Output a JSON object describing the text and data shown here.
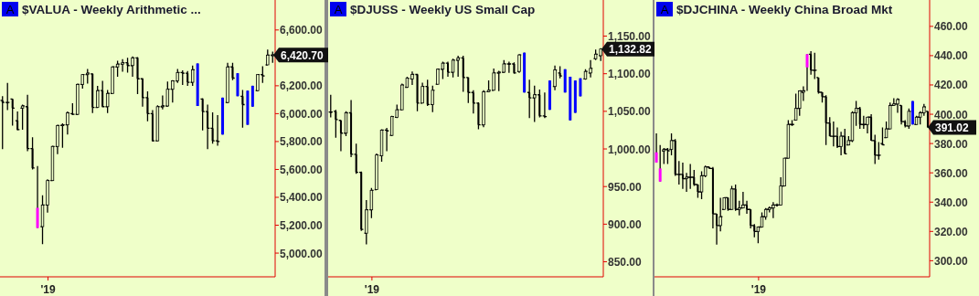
{
  "chart_data": [
    {
      "type": "candlestick",
      "title": "$VALUA - Weekly  Arithmetic ...",
      "annotations": [
        "A",
        "6,420.70"
      ],
      "categories": [
        null,
        null,
        null,
        null,
        null,
        null,
        null,
        null,
        null,
        "'19",
        null,
        null,
        null,
        null,
        null,
        null,
        null,
        null,
        null,
        null,
        null,
        null,
        null,
        null,
        null,
        null,
        null,
        null,
        null,
        null,
        null,
        null,
        null,
        null,
        null,
        null,
        null,
        null,
        null,
        null,
        null,
        null,
        null,
        null,
        null,
        null,
        null,
        null,
        null,
        null,
        null,
        null,
        null,
        null,
        null
      ],
      "ohlc": [
        [
          6095,
          6125,
          5745,
          6080
        ],
        [
          6080,
          6220,
          6025,
          6080
        ],
        [
          6105,
          6105,
          5915,
          6040
        ],
        [
          5950,
          6015,
          5880,
          5885
        ],
        [
          6040,
          6065,
          5885,
          6055
        ],
        [
          6050,
          6135,
          5730,
          5750
        ],
        [
          5750,
          5830,
          5600,
          5610
        ],
        [
          5325,
          5625,
          5180,
          5180
        ],
        [
          5190,
          5415,
          5065,
          5345
        ],
        [
          5345,
          5530,
          5290,
          5520
        ],
        [
          5520,
          5770,
          5520,
          5765
        ],
        [
          5765,
          5920,
          5710,
          5915
        ],
        [
          5915,
          5930,
          5755,
          5920
        ],
        [
          5920,
          6015,
          5850,
          6005
        ],
        [
          6000,
          6075,
          5990,
          5995
        ],
        [
          5995,
          6215,
          5990,
          6210
        ],
        [
          6210,
          6285,
          6180,
          6280
        ],
        [
          6280,
          6320,
          6215,
          6290
        ],
        [
          6285,
          6290,
          6005,
          6045
        ],
        [
          6045,
          6200,
          6040,
          6165
        ],
        [
          6165,
          6235,
          6045,
          6050
        ],
        [
          6050,
          6170,
          6005,
          6145
        ],
        [
          6145,
          6340,
          6145,
          6335
        ],
        [
          6335,
          6380,
          6265,
          6355
        ],
        [
          6355,
          6390,
          6300,
          6365
        ],
        [
          6365,
          6400,
          6295,
          6345
        ],
        [
          6345,
          6410,
          6265,
          6400
        ],
        [
          6400,
          6405,
          6140,
          6250
        ],
        [
          6250,
          6255,
          6050,
          6115
        ],
        [
          6115,
          6160,
          5945,
          6000
        ],
        [
          6000,
          6025,
          5800,
          5805
        ],
        [
          5805,
          6060,
          5805,
          6050
        ],
        [
          6050,
          6130,
          6030,
          6055
        ],
        [
          6055,
          6230,
          6050,
          6175
        ],
        [
          6175,
          6240,
          6080,
          6235
        ],
        [
          6235,
          6320,
          6220,
          6295
        ],
        [
          6295,
          6310,
          6205,
          6290
        ],
        [
          6290,
          6305,
          6200,
          6225
        ],
        [
          6225,
          6345,
          6200,
          6315
        ],
        [
          6360,
          6360,
          6055,
          6055
        ],
        [
          6105,
          6110,
          5880,
          6015
        ],
        [
          6015,
          6065,
          5745,
          5895
        ],
        [
          5895,
          6010,
          5785,
          5805
        ],
        [
          5805,
          5990,
          5770,
          5800
        ],
        [
          5850,
          6115,
          5850,
          6115
        ],
        [
          6080,
          6365,
          6075,
          6335
        ],
        [
          6335,
          6365,
          6240,
          6255
        ],
        [
          6290,
          6290,
          6125,
          6125
        ],
        [
          6125,
          6170,
          5900,
          6065
        ],
        [
          6165,
          6165,
          5920,
          5920
        ],
        [
          6050,
          6200,
          6050,
          6200
        ],
        [
          6165,
          6280,
          6160,
          6280
        ],
        [
          6280,
          6340,
          6220,
          6270
        ],
        [
          6350,
          6460,
          6350,
          6420
        ],
        [
          6420,
          6445,
          6365,
          6420.7
        ]
      ],
      "colors": [
        "#000000",
        "#000000",
        "#000000",
        "#000000",
        "#000000",
        "#000000",
        "#000000",
        "#ff00ff",
        "#000000",
        "#000000",
        "#000000",
        "#000000",
        "#000000",
        "#000000",
        "#000000",
        "#000000",
        "#000000",
        "#000000",
        "#000000",
        "#000000",
        "#000000",
        "#000000",
        "#000000",
        "#000000",
        "#000000",
        "#000000",
        "#000000",
        "#000000",
        "#000000",
        "#000000",
        "#000000",
        "#000000",
        "#000000",
        "#000000",
        "#000000",
        "#000000",
        "#000000",
        "#000000",
        "#000000",
        "#0000ff",
        "#000000",
        "#000000",
        "#000000",
        "#000000",
        "#0000ff",
        "#000000",
        "#000000",
        "#0000ff",
        "#000000",
        "#0000ff",
        "#0000ff",
        "#000000",
        "#000000",
        "#000000",
        "#000000"
      ],
      "ylim": [
        4830,
        6815
      ],
      "yticks": [
        {
          "value": 5000,
          "label": "5,000.00"
        },
        {
          "value": 5200,
          "label": "5,200.00"
        },
        {
          "value": 5400,
          "label": "5,400.00"
        },
        {
          "value": 5600,
          "label": "5,600.00"
        },
        {
          "value": 5800,
          "label": "5,800.00"
        },
        {
          "value": 6000,
          "label": "6,000.00"
        },
        {
          "value": 6200,
          "label": "6,200.00"
        },
        {
          "value": 6600,
          "label": "6,600.00"
        }
      ]
    },
    {
      "type": "candlestick",
      "title": "$DJUSS - Weekly  US Small Cap",
      "annotations": [
        "A",
        "1,132.82"
      ],
      "categories": [
        null,
        null,
        null,
        null,
        null,
        null,
        null,
        null,
        "'19",
        null,
        null,
        null,
        null,
        null,
        null,
        null,
        null,
        null,
        null,
        null,
        null,
        null,
        null,
        null,
        null,
        null,
        null,
        null,
        null,
        null,
        null,
        null,
        null,
        null,
        null,
        null,
        null,
        null,
        null,
        null,
        null,
        null,
        null,
        null,
        null,
        null,
        null,
        null,
        null,
        null,
        null,
        null,
        null,
        null
      ],
      "ohlc": [
        [
          1049,
          1072,
          1042,
          1049
        ],
        [
          1050,
          1052,
          1015,
          1039
        ],
        [
          1038,
          1038,
          997,
          1021
        ],
        [
          1021,
          1050,
          1017,
          1048
        ],
        [
          1048,
          1065,
          989,
          993
        ],
        [
          993,
          1007,
          967,
          969
        ],
        [
          969,
          970,
          891,
          893
        ],
        [
          888,
          932,
          873,
          919
        ],
        [
          919,
          948,
          908,
          945
        ],
        [
          946,
          994,
          946,
          992
        ],
        [
          991,
          1026,
          983,
          1025
        ],
        [
          1025,
          1028,
          997,
          1024
        ],
        [
          1018,
          1044,
          1017,
          1043
        ],
        [
          1042,
          1059,
          1041,
          1052
        ],
        [
          1052,
          1087,
          1052,
          1085
        ],
        [
          1082,
          1096,
          1081,
          1094
        ],
        [
          1093,
          1103,
          1085,
          1099
        ],
        [
          1099,
          1100,
          1050,
          1061
        ],
        [
          1061,
          1088,
          1061,
          1083
        ],
        [
          1083,
          1092,
          1057,
          1059
        ],
        [
          1059,
          1084,
          1049,
          1078
        ],
        [
          1086,
          1107,
          1086,
          1106
        ],
        [
          1106,
          1116,
          1093,
          1114
        ],
        [
          1114,
          1116,
          1096,
          1102
        ],
        [
          1102,
          1120,
          1095,
          1118
        ],
        [
          1118,
          1124,
          1096,
          1121
        ],
        [
          1121,
          1124,
          1076,
          1095
        ],
        [
          1095,
          1095,
          1061,
          1075
        ],
        [
          1075,
          1078,
          1047,
          1061
        ],
        [
          1061,
          1062,
          1026,
          1032
        ],
        [
          1032,
          1078,
          1029,
          1076
        ],
        [
          1076,
          1091,
          1076,
          1078
        ],
        [
          1078,
          1107,
          1078,
          1101
        ],
        [
          1101,
          1104,
          1077,
          1102
        ],
        [
          1102,
          1118,
          1101,
          1113
        ],
        [
          1113,
          1116,
          1101,
          1113
        ],
        [
          1113,
          1115,
          1100,
          1101
        ],
        [
          1103,
          1126,
          1101,
          1125
        ],
        [
          1128,
          1128,
          1075,
          1075
        ],
        [
          1075,
          1092,
          1041,
          1068
        ],
        [
          1068,
          1084,
          1036,
          1072
        ],
        [
          1072,
          1079,
          1042,
          1044
        ],
        [
          1044,
          1075,
          1041,
          1043
        ],
        [
          1052,
          1091,
          1052,
          1091
        ],
        [
          1083,
          1111,
          1078,
          1105
        ],
        [
          1101,
          1110,
          1094,
          1097
        ],
        [
          1106,
          1106,
          1075,
          1075
        ],
        [
          1096,
          1096,
          1038,
          1038
        ],
        [
          1091,
          1091,
          1048,
          1048
        ],
        [
          1070,
          1094,
          1070,
          1094
        ],
        [
          1093,
          1106,
          1092,
          1103
        ],
        [
          1101,
          1118,
          1095,
          1107
        ],
        [
          1120,
          1132,
          1118,
          1126
        ],
        [
          1124,
          1134,
          1117,
          1132.82
        ]
      ],
      "colors": [
        "#000000",
        "#000000",
        "#000000",
        "#000000",
        "#000000",
        "#000000",
        "#000000",
        "#000000",
        "#000000",
        "#000000",
        "#000000",
        "#000000",
        "#000000",
        "#000000",
        "#000000",
        "#000000",
        "#000000",
        "#000000",
        "#000000",
        "#000000",
        "#000000",
        "#000000",
        "#000000",
        "#000000",
        "#000000",
        "#000000",
        "#000000",
        "#000000",
        "#000000",
        "#000000",
        "#000000",
        "#000000",
        "#000000",
        "#000000",
        "#000000",
        "#000000",
        "#000000",
        "#000000",
        "#0000ff",
        "#000000",
        "#000000",
        "#000000",
        "#000000",
        "#0000ff",
        "#000000",
        "#000000",
        "#0000ff",
        "#0000ff",
        "#0000ff",
        "#0000ff",
        "#000000",
        "#000000",
        "#000000",
        "#000000"
      ],
      "ylim": [
        830,
        1198
      ],
      "yticks": [
        {
          "value": 850,
          "label": "850.00"
        },
        {
          "value": 900,
          "label": "900.00"
        },
        {
          "value": 950,
          "label": "950.00"
        },
        {
          "value": 1000,
          "label": "1,000.00"
        },
        {
          "value": 1050,
          "label": "1,050.00"
        },
        {
          "value": 1100,
          "label": "1,100.00"
        },
        {
          "value": 1150,
          "label": "1,150.00"
        }
      ]
    },
    {
      "type": "candlestick",
      "title": "$DJCHINA - Weekly  China Broad Mkt",
      "annotations": [
        "A",
        "391.02"
      ],
      "categories": [
        null,
        null,
        null,
        null,
        null,
        null,
        null,
        null,
        null,
        null,
        null,
        null,
        null,
        null,
        null,
        null,
        null,
        null,
        null,
        null,
        null,
        null,
        null,
        null,
        null,
        null,
        null,
        "'19",
        null,
        null,
        null,
        null,
        null,
        null,
        null,
        null,
        null,
        null,
        null,
        null,
        null,
        null,
        null,
        null,
        null,
        null,
        null,
        null,
        null,
        null,
        null,
        null,
        null,
        null,
        null,
        null,
        null,
        null,
        null,
        null,
        null,
        null,
        null,
        null,
        null,
        null,
        null,
        null,
        null,
        null,
        null,
        null,
        null
      ],
      "ohlc": [
        [
          374,
          387,
          367,
          367
        ],
        [
          363,
          379,
          354,
          354
        ],
        [
          375,
          377,
          366,
          376
        ],
        [
          376,
          377,
          366,
          375
        ],
        [
          376,
          387,
          372,
          382
        ],
        [
          382,
          383,
          358,
          359
        ],
        [
          359,
          368,
          352,
          359
        ],
        [
          359,
          367,
          349,
          356
        ],
        [
          356,
          360,
          347,
          357
        ],
        [
          357,
          366,
          349,
          357
        ],
        [
          357,
          362,
          351,
          352
        ],
        [
          352,
          352,
          343,
          347
        ],
        [
          347,
          361,
          342,
          358
        ],
        [
          358,
          365,
          357,
          364
        ],
        [
          364,
          364,
          363,
          363
        ],
        [
          363,
          364,
          322,
          332
        ],
        [
          332,
          332,
          311,
          324
        ],
        [
          324,
          343,
          320,
          330
        ],
        [
          335,
          343,
          335,
          343
        ],
        [
          343,
          343,
          334,
          335
        ],
        [
          335,
          351,
          335,
          349
        ],
        [
          349,
          352,
          334,
          335
        ],
        [
          335,
          341,
          331,
          336
        ],
        [
          336,
          347,
          336,
          338
        ],
        [
          338,
          341,
          332,
          335
        ],
        [
          335,
          335,
          322,
          324
        ],
        [
          324,
          325,
          316,
          320
        ],
        [
          320,
          323,
          312,
          323
        ],
        [
          323,
          333,
          323,
          330
        ],
        [
          330,
          336,
          328,
          335
        ],
        [
          335,
          337,
          333,
          336
        ],
        [
          336,
          340,
          329,
          338
        ],
        [
          338,
          339,
          337,
          338
        ],
        [
          338,
          357,
          338,
          351
        ],
        [
          351,
          370,
          351,
          370
        ],
        [
          370,
          396,
          370,
          393
        ],
        [
          393,
          396,
          392,
          393
        ],
        [
          396,
          414,
          396,
          404
        ],
        [
          404,
          416,
          399,
          416
        ],
        [
          415,
          419,
          409,
          416
        ],
        [
          432,
          441,
          416,
          441
        ],
        [
          441,
          443,
          427,
          430
        ],
        [
          430,
          442,
          424,
          430
        ],
        [
          425,
          425,
          414,
          415
        ],
        [
          415,
          415,
          408,
          412
        ],
        [
          412,
          413,
          379,
          394
        ],
        [
          394,
          398,
          385,
          385
        ],
        [
          385,
          395,
          378,
          385
        ],
        [
          385,
          391,
          377,
          378
        ],
        [
          378,
          388,
          372,
          385
        ],
        [
          385,
          390,
          373,
          373
        ],
        [
          379,
          385,
          379,
          382
        ],
        [
          382,
          402,
          381,
          401
        ],
        [
          401,
          409,
          392,
          404
        ],
        [
          404,
          405,
          390,
          393
        ],
        [
          393,
          399,
          390,
          393
        ],
        [
          393,
          398,
          387,
          398
        ],
        [
          398,
          400,
          382,
          382
        ],
        [
          382,
          386,
          366,
          372
        ],
        [
          372,
          381,
          369,
          372
        ],
        [
          380,
          391,
          379,
          379
        ],
        [
          384,
          395,
          384,
          390
        ],
        [
          390,
          408,
          390,
          406
        ],
        [
          406,
          411,
          406,
          407
        ],
        [
          407,
          411,
          401,
          410
        ],
        [
          406,
          406,
          393,
          395
        ],
        [
          395,
          396,
          391,
          392
        ],
        [
          392,
          404,
          390,
          402
        ],
        [
          409,
          409,
          393,
          393
        ],
        [
          393,
          399,
          393,
          398
        ],
        [
          398,
          402,
          393,
          401
        ],
        [
          401,
          407,
          399,
          405
        ],
        [
          402,
          402,
          391,
          391.02
        ]
      ],
      "colors": [
        "#ff00ff",
        "#ff00ff",
        "#000000",
        "#000000",
        "#000000",
        "#000000",
        "#000000",
        "#000000",
        "#000000",
        "#000000",
        "#000000",
        "#000000",
        "#000000",
        "#000000",
        "#000000",
        "#000000",
        "#000000",
        "#000000",
        "#000000",
        "#000000",
        "#000000",
        "#000000",
        "#000000",
        "#000000",
        "#000000",
        "#000000",
        "#000000",
        "#000000",
        "#000000",
        "#000000",
        "#000000",
        "#000000",
        "#000000",
        "#000000",
        "#000000",
        "#000000",
        "#000000",
        "#000000",
        "#000000",
        "#000000",
        "#ff00ff",
        "#000000",
        "#000000",
        "#000000",
        "#000000",
        "#000000",
        "#000000",
        "#000000",
        "#000000",
        "#000000",
        "#000000",
        "#000000",
        "#000000",
        "#000000",
        "#000000",
        "#000000",
        "#000000",
        "#000000",
        "#000000",
        "#000000",
        "#000000",
        "#000000",
        "#000000",
        "#000000",
        "#000000",
        "#000000",
        "#000000",
        "#000000",
        "#0000ff",
        "#000000",
        "#000000",
        "#000000",
        "#000000"
      ],
      "ylim": [
        289,
        478
      ],
      "yticks": [
        {
          "value": 300,
          "label": "300.00"
        },
        {
          "value": 320,
          "label": "320.00"
        },
        {
          "value": 340,
          "label": "340.00"
        },
        {
          "value": 360,
          "label": "360.00"
        },
        {
          "value": 380,
          "label": "380.00"
        },
        {
          "value": 400,
          "label": "400.00"
        },
        {
          "value": 420,
          "label": "420.00"
        },
        {
          "value": 440,
          "label": "440.00"
        },
        {
          "value": 460,
          "label": "460.00"
        }
      ]
    }
  ]
}
